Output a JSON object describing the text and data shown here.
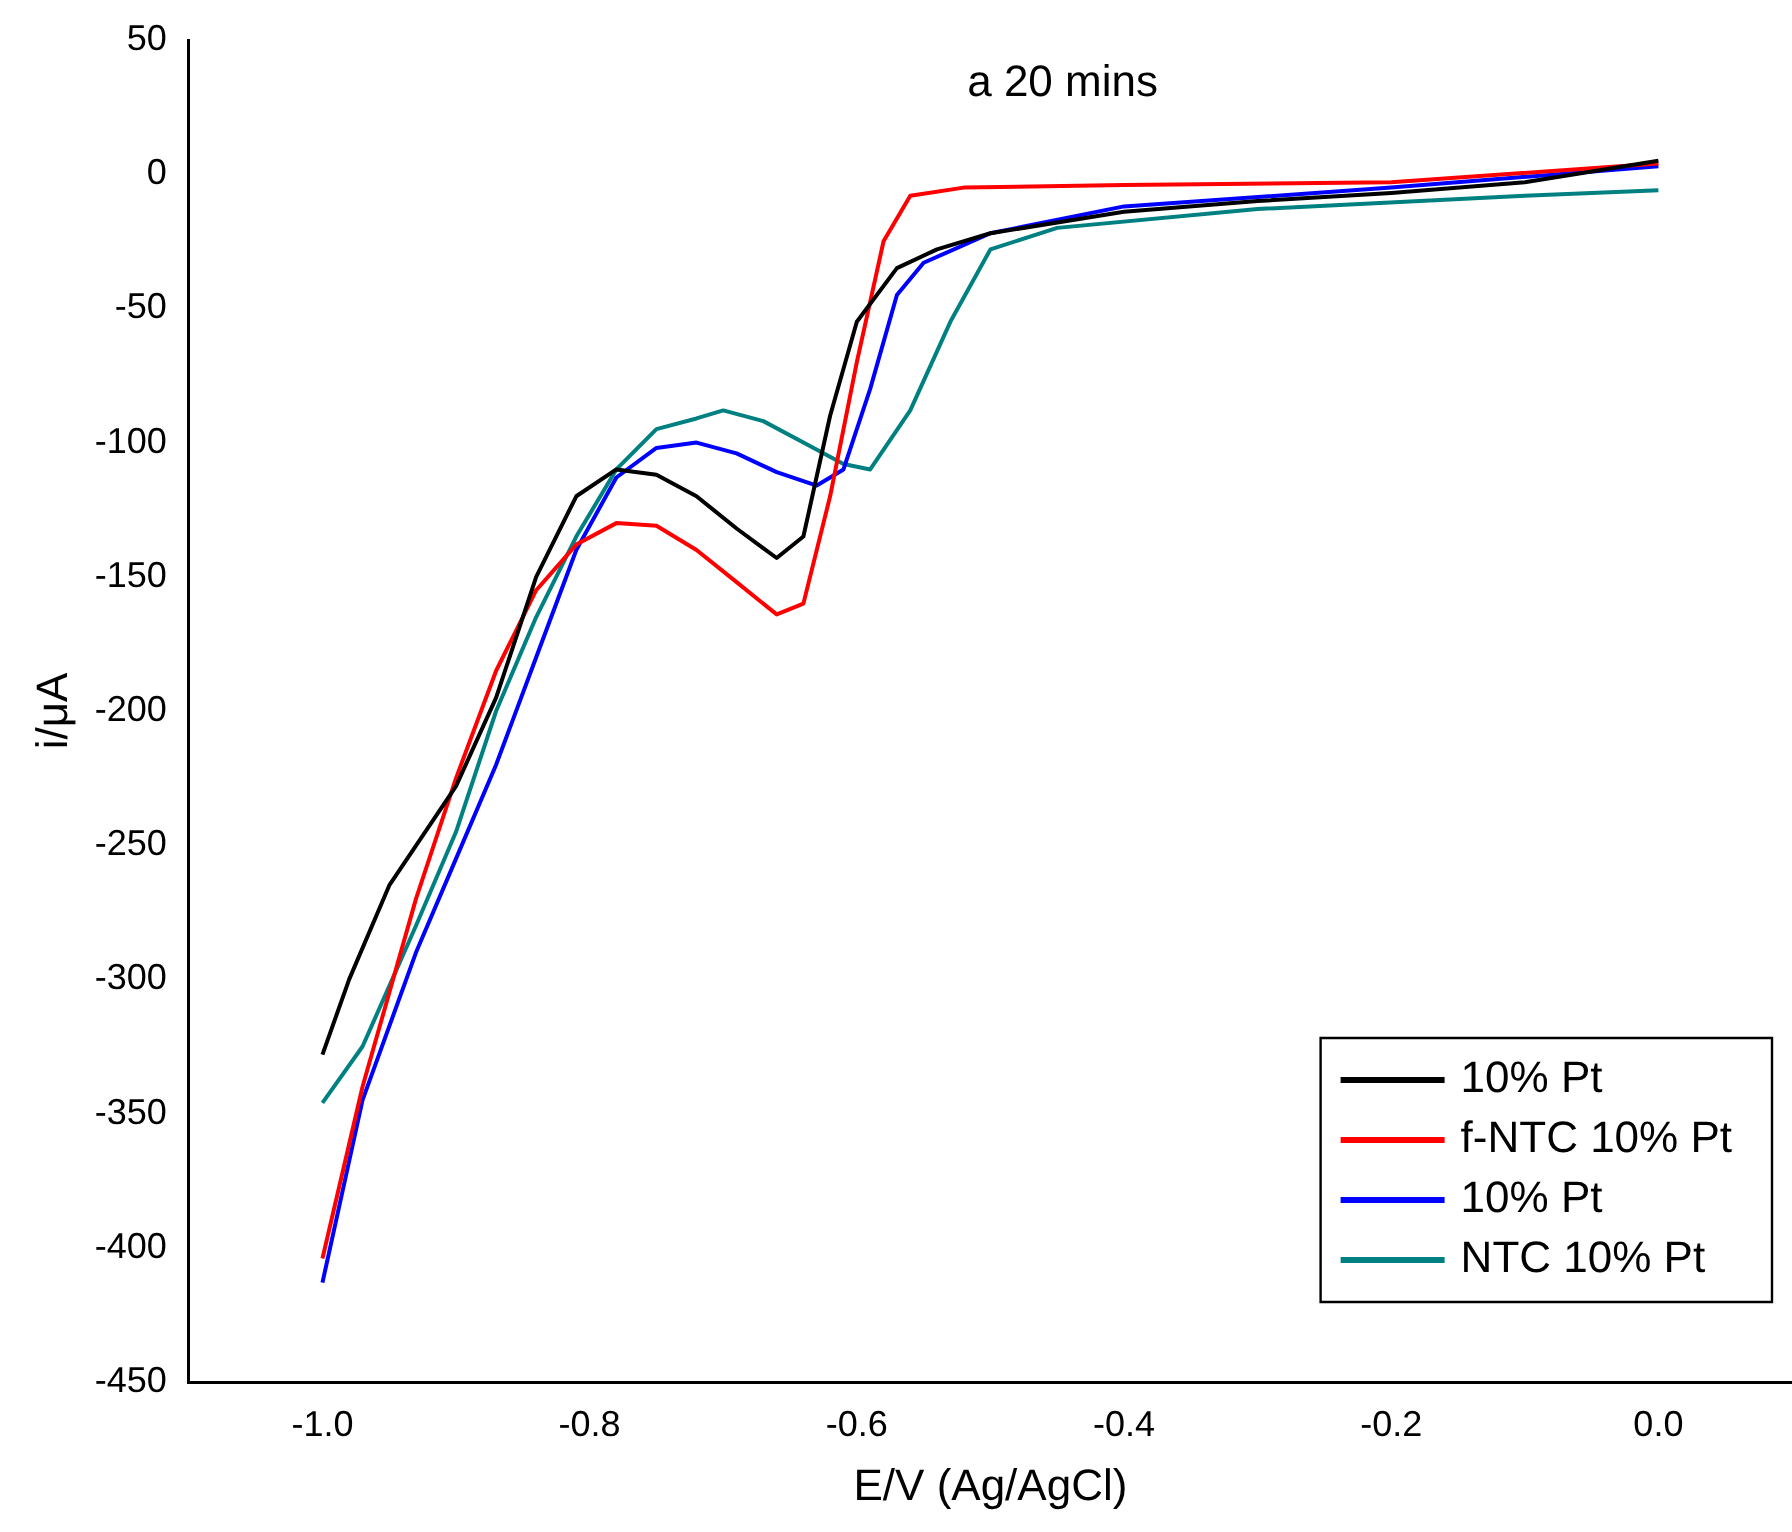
{
  "chart_data": {
    "type": "line",
    "xlabel": "E/V (Ag/AgCl)",
    "ylabel": "i/μA",
    "annotations": [
      "a 20 mins"
    ],
    "xlim": [
      -1.1,
      0.1
    ],
    "xticks": [
      {
        "value": -1,
        "label": "-1.0"
      },
      -0.8,
      -0.6,
      -0.4,
      -0.2,
      {
        "value": 0,
        "label": "0.0"
      }
    ],
    "ylim": [
      -450,
      50
    ],
    "yticks": [
      -450,
      -400,
      -350,
      -300,
      -250,
      -200,
      -150,
      -100,
      -50,
      0,
      50
    ],
    "grid": false,
    "legend": "bottom right",
    "marker": "none",
    "line_style": "solid",
    "series": [
      {
        "name": "10% Pt",
        "color": "#000000",
        "x": [
          -1,
          -0.98,
          -0.95,
          -0.9,
          -0.87,
          -0.84,
          -0.81,
          -0.78,
          -0.75,
          -0.72,
          -0.69,
          -0.66,
          -0.64,
          -0.62,
          -0.6,
          -0.57,
          -0.54,
          -0.5,
          -0.4,
          -0.3,
          -0.2,
          -0.1,
          0
        ],
        "values": [
          -328,
          -300,
          -265,
          -228,
          -195,
          -150,
          -120,
          -110,
          -112,
          -120,
          -132,
          -143,
          -135,
          -90,
          -55,
          -35,
          -28,
          -22,
          -14,
          -10,
          -7,
          -3,
          5
        ]
      },
      {
        "name": "f-NTC 10% Pt",
        "color": "#ff0000",
        "x": [
          -1,
          -0.97,
          -0.93,
          -0.9,
          -0.87,
          -0.84,
          -0.81,
          -0.78,
          -0.75,
          -0.72,
          -0.69,
          -0.66,
          -0.64,
          -0.62,
          -0.6,
          -0.58,
          -0.56,
          -0.52,
          -0.4,
          -0.2,
          0
        ],
        "values": [
          -404,
          -340,
          -270,
          -225,
          -185,
          -155,
          -138,
          -130,
          -131,
          -140,
          -152,
          -164,
          -160,
          -120,
          -70,
          -25,
          -8,
          -5,
          -4,
          -3,
          4
        ]
      },
      {
        "name": "10% Pt",
        "color": "#0000ff",
        "x": [
          -1,
          -0.97,
          -0.93,
          -0.9,
          -0.87,
          -0.84,
          -0.81,
          -0.78,
          -0.75,
          -0.72,
          -0.69,
          -0.66,
          -0.63,
          -0.61,
          -0.59,
          -0.57,
          -0.55,
          -0.5,
          -0.4,
          -0.2,
          0
        ],
        "values": [
          -413,
          -345,
          -290,
          -255,
          -220,
          -180,
          -140,
          -113,
          -102,
          -100,
          -104,
          -111,
          -116,
          -110,
          -80,
          -45,
          -33,
          -22,
          -12,
          -5,
          3
        ]
      },
      {
        "name": "NTC 10% Pt",
        "color": "#008080",
        "x": [
          -1,
          -0.97,
          -0.93,
          -0.9,
          -0.87,
          -0.84,
          -0.81,
          -0.78,
          -0.75,
          -0.72,
          -0.7,
          -0.67,
          -0.64,
          -0.61,
          -0.59,
          -0.56,
          -0.53,
          -0.5,
          -0.45,
          -0.3,
          -0.1,
          0
        ],
        "values": [
          -346,
          -325,
          -280,
          -245,
          -200,
          -165,
          -135,
          -110,
          -95,
          -91,
          -88,
          -92,
          -100,
          -108,
          -110,
          -88,
          -55,
          -28,
          -20,
          -13,
          -8,
          -6
        ]
      }
    ]
  }
}
